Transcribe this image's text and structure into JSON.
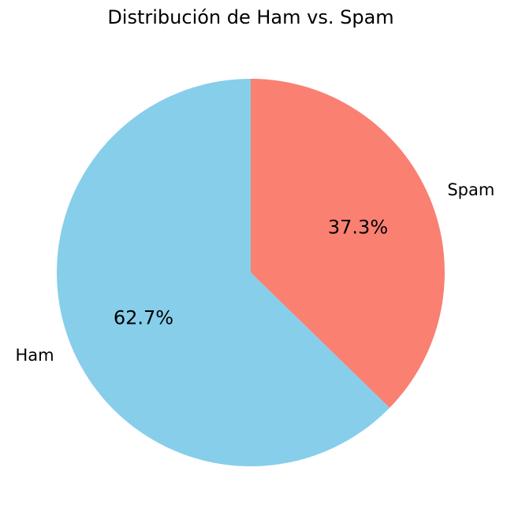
{
  "chart_data": {
    "type": "pie",
    "title": "Distribución de Ham vs. Spam",
    "start_angle_deg": 90,
    "direction": "counterclockwise",
    "slices": [
      {
        "label": "Ham",
        "value": 62.7,
        "pct_label": "62.7%",
        "color": "#87ceeb"
      },
      {
        "label": "Spam",
        "value": 37.3,
        "pct_label": "37.3%",
        "color": "#fa8072"
      }
    ]
  }
}
